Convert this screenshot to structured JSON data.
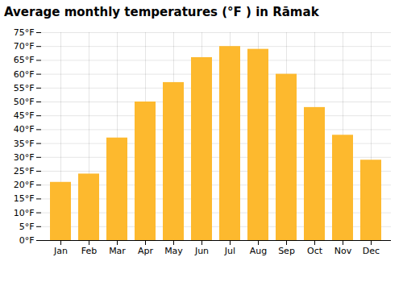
{
  "chart_data": {
    "type": "bar",
    "title": "Average monthly temperatures (°F ) in Rāmak",
    "categories": [
      "Jan",
      "Feb",
      "Mar",
      "Apr",
      "May",
      "Jun",
      "Jul",
      "Aug",
      "Sep",
      "Oct",
      "Nov",
      "Dec"
    ],
    "values": [
      21,
      24,
      37,
      50,
      57,
      66,
      70,
      69,
      60,
      48,
      38,
      29
    ],
    "color": "#FDB92E",
    "ylim": [
      0,
      75
    ],
    "yticks": [
      {
        "value": 0,
        "label": "0°F"
      },
      {
        "value": 5,
        "label": "5°F"
      },
      {
        "value": 10,
        "label": "10°F"
      },
      {
        "value": 15,
        "label": "15°F"
      },
      {
        "value": 20,
        "label": "20°F"
      },
      {
        "value": 25,
        "label": "25°F"
      },
      {
        "value": 30,
        "label": "30°F"
      },
      {
        "value": 35,
        "label": "35°F"
      },
      {
        "value": 40,
        "label": "40°F"
      },
      {
        "value": 45,
        "label": "45°F"
      },
      {
        "value": 50,
        "label": "50°F"
      },
      {
        "value": 55,
        "label": "55°F"
      },
      {
        "value": 60,
        "label": "60°F"
      },
      {
        "value": 65,
        "label": "65°F"
      },
      {
        "value": 70,
        "label": "70°F"
      },
      {
        "value": 75,
        "label": "75°F"
      }
    ],
    "grid": true
  }
}
